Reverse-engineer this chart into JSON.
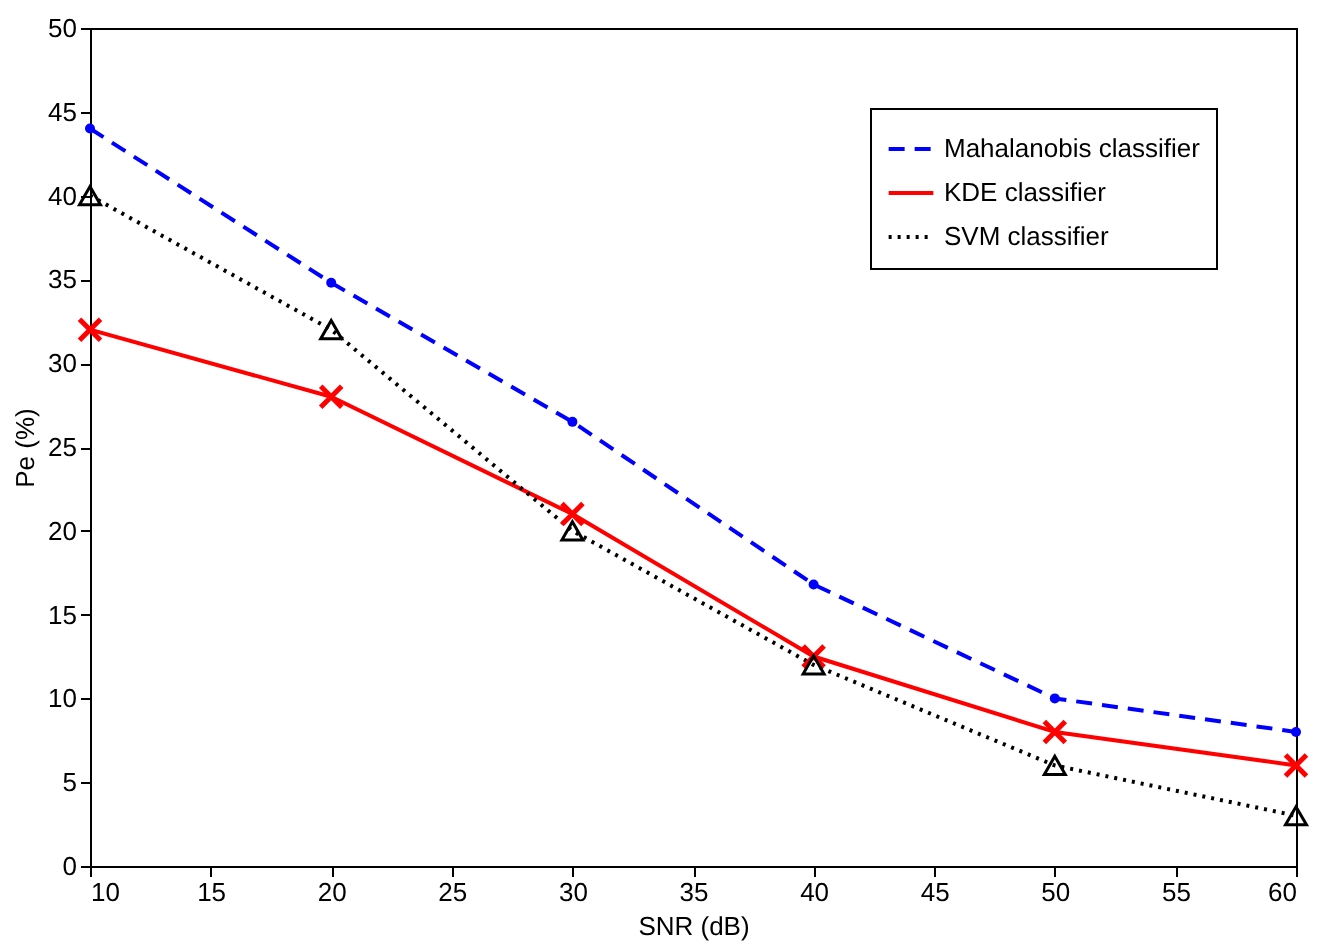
{
  "chart_data": {
    "type": "line",
    "xlabel": "SNR (dB)",
    "ylabel": "Pe (%)",
    "x": [
      10,
      20,
      30,
      40,
      50,
      60
    ],
    "series": [
      {
        "name": "Mahalanobis classifier",
        "color": "#0000ff",
        "values": [
          44,
          34.8,
          26.5,
          16.8,
          10,
          8
        ],
        "marker": "circle",
        "line_style": "dashed"
      },
      {
        "name": "KDE classifier",
        "color": "#ff0000",
        "values": [
          32,
          28,
          21,
          12.5,
          8,
          6
        ],
        "marker": "cross",
        "line_style": "solid"
      },
      {
        "name": "SVM classifier",
        "color": "#000000",
        "values": [
          40,
          32,
          20,
          12,
          6,
          3
        ],
        "marker": "triangle",
        "line_style": "dotted"
      }
    ],
    "xlim": [
      10,
      60
    ],
    "xticks": [
      10,
      15,
      20,
      25,
      30,
      35,
      40,
      45,
      50,
      55,
      60
    ],
    "ylim": [
      0,
      50
    ],
    "yticks": [
      0,
      5,
      10,
      15,
      20,
      25,
      30,
      35,
      40,
      45,
      50
    ],
    "grid": false,
    "legend": "top right"
  }
}
